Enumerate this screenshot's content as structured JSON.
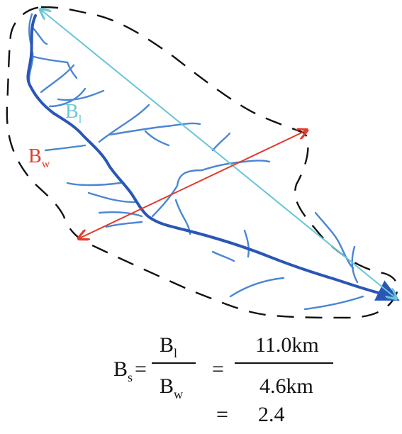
{
  "labels": {
    "length": {
      "main": "B",
      "sub": "l"
    },
    "width": {
      "main": "B",
      "sub": "w"
    }
  },
  "formula": {
    "lhs_main": "B",
    "lhs_sub": "s",
    "equals1": "=",
    "frac1_num_main": "B",
    "frac1_num_sub": "l",
    "frac1_den_main": "B",
    "frac1_den_sub": "w",
    "equals2": "=",
    "frac2_num": "11.0km",
    "frac2_den": "4.6km",
    "equals3": "=",
    "result": "2.4"
  },
  "colors": {
    "boundary": "#111111",
    "main_stream": "#2a56b6",
    "tributary": "#4a86d4",
    "length_line": "#67c6d8",
    "width_line": "#e23a2b",
    "length_label": "#67c6d8",
    "width_label": "#e23a2b",
    "formula": "#111111"
  },
  "icons": {
    "length_endpoint": "arrowhead-icon",
    "width_endpoints": "arrowhead-icon",
    "stream_outlet": "arrowhead-icon"
  }
}
